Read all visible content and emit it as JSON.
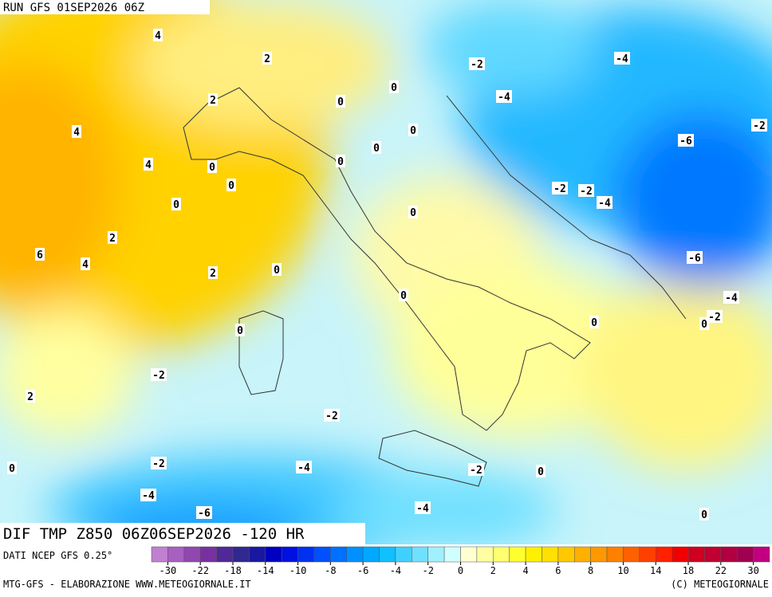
{
  "header": "RUN GFS 01SEP2026 06Z",
  "title": "DIF TMP Z850 06Z06SEP2026 -120 HR",
  "source": "DATI NCEP GFS 0.25°",
  "footer_left": "MTG-GFS - ELABORAZIONE WWW.METEOGIORNALE.IT",
  "footer_right": "(C) METEOGIORNALE",
  "colorbar": {
    "ticks": [
      -30,
      -22,
      -18,
      -14,
      -10,
      -8,
      -6,
      -4,
      -2,
      0,
      2,
      4,
      6,
      8,
      10,
      14,
      18,
      22,
      30
    ],
    "colors": [
      "#c080d0",
      "#a860c0",
      "#9048b0",
      "#7830a0",
      "#502898",
      "#302890",
      "#1818a0",
      "#0000c0",
      "#0010e0",
      "#0030f0",
      "#0050ff",
      "#0070ff",
      "#0090ff",
      "#00a8ff",
      "#10c0ff",
      "#40d0ff",
      "#70e0ff",
      "#a0f0ff",
      "#d0ffff",
      "#ffffd0",
      "#ffffa0",
      "#ffff70",
      "#ffff30",
      "#fff000",
      "#ffe000",
      "#ffc800",
      "#ffb000",
      "#ff9800",
      "#ff8000",
      "#ff6000",
      "#ff4000",
      "#ff2000",
      "#f00000",
      "#d00020",
      "#c00030",
      "#b00040",
      "#a00050",
      "#c00080"
    ]
  },
  "contour_labels": [
    4,
    2,
    -2,
    -4,
    0,
    -4,
    2,
    0,
    -2,
    4,
    0,
    -6,
    0,
    4,
    0,
    0,
    0,
    -2,
    -2,
    -4,
    0,
    0,
    2,
    6,
    -6,
    4,
    0,
    2,
    0,
    -4,
    0,
    -2,
    0,
    0,
    -2,
    2,
    -2,
    -2,
    -4,
    0,
    -2,
    0,
    -4,
    -4,
    -6,
    0
  ]
}
